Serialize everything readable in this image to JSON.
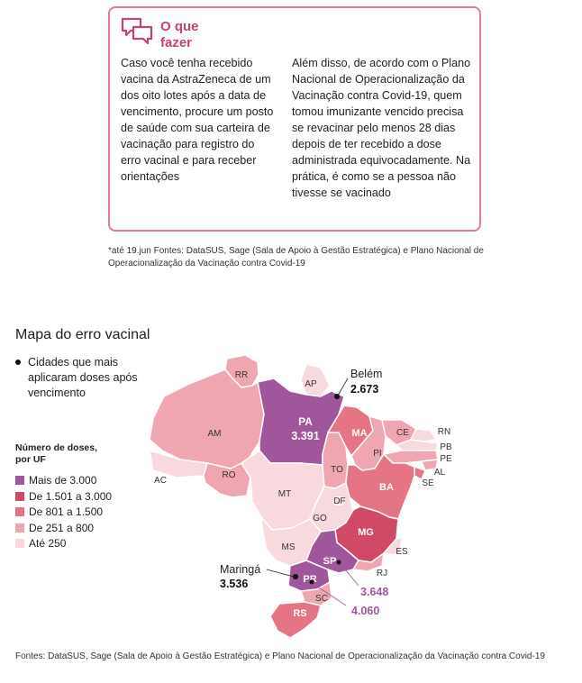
{
  "info_box": {
    "title": "O que fazer",
    "left_text": "Caso você tenha recebido vacina da AstraZeneca de um dos oito lotes após a data de vencimento, procure um posto de saúde com sua carteira de vacinação para registro do erro vacinal e para receber orientações",
    "right_text": "Além disso, de acordo com o Plano Nacional de Operacionalização da Vacinação contra Covid-19, quem tomou imunizante vencido precisa se revacinar pelo menos 28 dias depois de ter recebido a dose administrada equivocadamente. Na prática, é como se a pessoa não tivesse se vacinado"
  },
  "note": "*até 19.jun Fontes: DataSUS, Sage (Sala de Apoio à Gestão Estratégica) e Plano Nacional de Operacionalização da Vacinação contra Covid-19",
  "map": {
    "title": "Mapa do erro vacinal",
    "cities_legend": "Cidades que mais aplicaram doses após vencimento",
    "legend_title": "Número de doses, por UF",
    "legend": [
      {
        "label": "Mais de 3.000",
        "color": "#a0569a"
      },
      {
        "label": "De 1.501 a 3.000",
        "color": "#d04a68"
      },
      {
        "label": "De 801 a 1.500",
        "color": "#e57585"
      },
      {
        "label": "De 251 a 800",
        "color": "#f0a6b1"
      },
      {
        "label": "Até 250",
        "color": "#f8d9dd"
      }
    ],
    "states": {
      "RR": "RR",
      "AP": "AP",
      "AM": "AM",
      "PA": "PA",
      "PA_value": "3.391",
      "AC": "AC",
      "RO": "RO",
      "MT": "MT",
      "TO": "TO",
      "MA": "MA",
      "PI": "PI",
      "CE": "CE",
      "RN": "RN",
      "PB": "PB",
      "PE": "PE",
      "AL": "AL",
      "SE": "SE",
      "BA": "BA",
      "DF": "DF",
      "GO": "GO",
      "MG": "MG",
      "ES": "ES",
      "MS": "MS",
      "SP": "SP",
      "RJ": "RJ",
      "PR": "PR",
      "SC": "SC",
      "RS": "RS"
    },
    "cities": {
      "belem_name": "Belém",
      "belem_value": "2.673",
      "maringa_name": "Maringá",
      "maringa_value": "3.536",
      "sp_value": "3.648",
      "pr_value": "4.060"
    }
  },
  "sources": "Fontes: DataSUS, Sage (Sala de Apoio à Gestão Estratégica) e Plano Nacional de Operacionalização da Vacinação contra Covid-19"
}
